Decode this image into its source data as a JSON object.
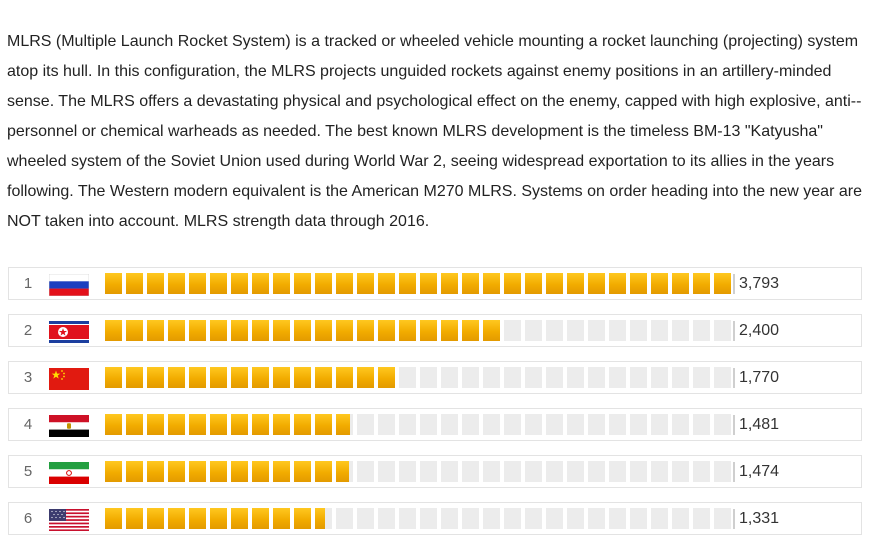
{
  "intro": {
    "text": "MLRS (Multiple Launch Rocket System) is a tracked or wheeled vehicle mounting a rocket launching (projecting) system atop its hull. In this configuration, the MLRS projects unguided rockets against enemy positions in an artillery-minded sense. The MLRS offers a devastating physical and psychological effect on the enemy, capped with high explosive, anti--personnel or chemical warheads as needed. The best known MLRS development is the timeless BM-13 \"Katyusha\" wheeled system of the Soviet Union used during World War 2, seeing widespread exportation to its allies in the years following. The Western modern equivalent is the American M270 MLRS. Systems on order heading into the new year are NOT taken into account. MLRS strength data through 2016."
  },
  "colors": {
    "bar_fill": "#f2ac00",
    "bar_empty": "#ececec"
  },
  "chart_data": {
    "type": "bar",
    "orientation": "horizontal",
    "categories": [
      "1",
      "2",
      "3",
      "4",
      "5",
      "6"
    ],
    "flags": [
      "russia-flag-icon",
      "north-korea-flag-icon",
      "china-flag-icon",
      "egypt-flag-icon",
      "iran-flag-icon",
      "usa-flag-icon"
    ],
    "values": [
      3793,
      2400,
      1770,
      1481,
      1474,
      1331
    ],
    "value_labels": [
      "3,793",
      "2,400",
      "1,770",
      "1,481",
      "1,474",
      "1,331"
    ],
    "xlim": [
      0,
      3793
    ]
  }
}
